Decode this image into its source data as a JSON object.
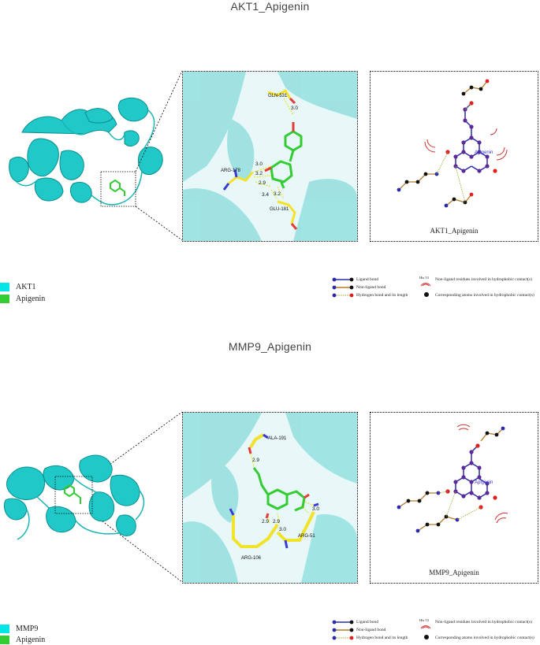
{
  "panels": [
    {
      "title": "AKT1_Apigenin",
      "residues": [
        {
          "name": "GLN-531",
          "distance": "3.0"
        },
        {
          "name": "ARG-178",
          "distance": "3.0"
        },
        {
          "name": "ARG-178",
          "distance": "3.2"
        },
        {
          "name": "ARG-178",
          "distance": "2.9"
        },
        {
          "name": "GLU-181",
          "distance": "3.4"
        },
        {
          "name": "GLU-181",
          "distance": "3.2"
        }
      ],
      "ligplot_caption": "AKT1_Apigenin",
      "ligplot_ligand": "Apigenin",
      "swatches": [
        {
          "label": "AKT1",
          "color": "#00e5e5"
        },
        {
          "label": "Apigenin",
          "color": "#33cc33"
        }
      ]
    },
    {
      "title": "MMP9_Apigenin",
      "residues": [
        {
          "name": "ALA-191",
          "distance": "2.9"
        },
        {
          "name": "ARG-106",
          "distance": "2.9"
        },
        {
          "name": "ARG-106",
          "distance": "2.9"
        },
        {
          "name": "ARG-51",
          "distance": "3.0"
        },
        {
          "name": "ARG-51",
          "distance": "3.0"
        }
      ],
      "ligplot_caption": "MMP9_Apigenin",
      "ligplot_ligand": "Apigenin",
      "swatches": [
        {
          "label": "MMP9",
          "color": "#00e5e5"
        },
        {
          "label": "Apigenin",
          "color": "#33cc33"
        }
      ]
    }
  ],
  "legend": {
    "ligand_bond": "Ligand bond",
    "nonligand_bond": "Non-ligand bond",
    "hbond": "Hydrogen bond and its length",
    "hydrophobic": "Non-ligand residues involved in hydrophobic contact(s)",
    "corresponding": "Corresponding atoms involved in hydrophobic contact(s)",
    "hbond_sample": "3.0",
    "hydrophobic_sample": "His 53"
  },
  "colors": {
    "protein": "#1fc4c4",
    "ligand": "#33cc33",
    "residue": "#f2e22a",
    "hbond": "#e6e600",
    "ligand_bond": "#2a2aa8",
    "nonligand_bond": "#b87a2a"
  }
}
